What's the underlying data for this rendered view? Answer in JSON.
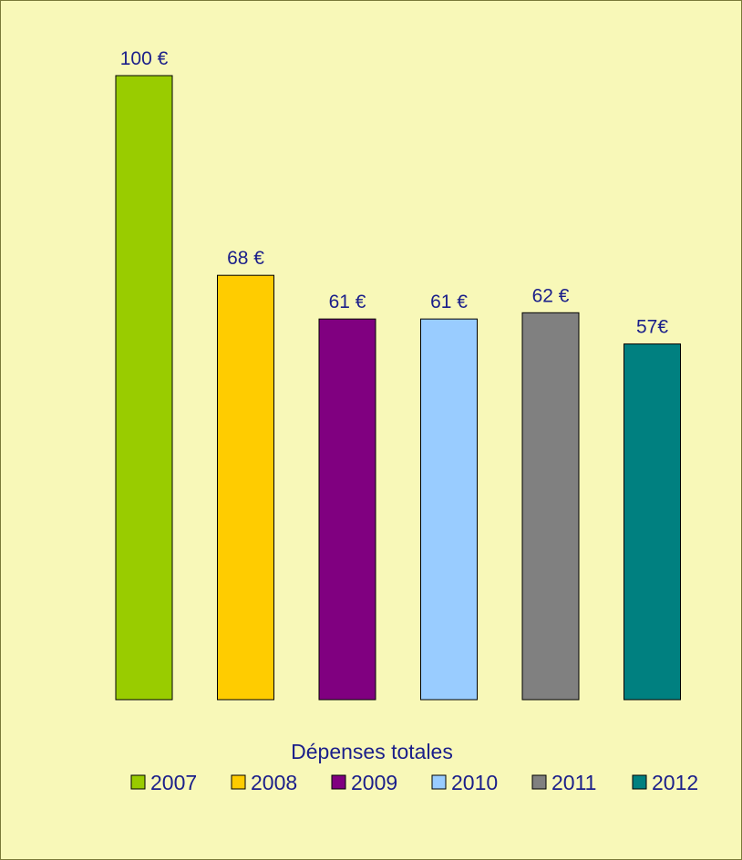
{
  "chart_data": {
    "type": "bar",
    "categories": [
      "2007",
      "2008",
      "2009",
      "2010",
      "2011",
      "2012"
    ],
    "values": [
      100,
      68,
      61,
      61,
      62,
      57
    ],
    "data_labels": [
      "100 €",
      "68 €",
      "61 €",
      "61 €",
      "62 €",
      "57€"
    ],
    "colors": [
      "#99cc00",
      "#ffcc00",
      "#800080",
      "#99ccff",
      "#808080",
      "#008080"
    ],
    "xlabel": "Dépenses totales",
    "ylim": [
      0,
      100
    ],
    "legend": {
      "placement": "bottom",
      "entries": [
        "2007",
        "2008",
        "2009",
        "2010",
        "2011",
        "2012"
      ]
    },
    "grid": false,
    "background": "#f8f8b8",
    "text_color": "#1b1f8a"
  }
}
